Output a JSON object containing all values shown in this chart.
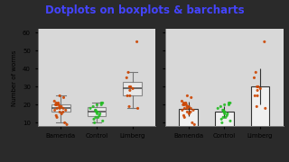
{
  "title": "Dotplots on boxplots & barcharts",
  "title_color": "#4444ff",
  "ylabel": "Number of worms",
  "ylim": [
    8,
    62
  ],
  "yticks": [
    10,
    20,
    30,
    40,
    50,
    60
  ],
  "groups": [
    "Bamenda",
    "Control",
    "Limberg"
  ],
  "bamenda_data": [
    25,
    24,
    22,
    21,
    21,
    20,
    20,
    20,
    19,
    19,
    18,
    18,
    18,
    17,
    17,
    16,
    16,
    15,
    14,
    13,
    10,
    9
  ],
  "control_data": [
    21,
    21,
    20,
    20,
    19,
    18,
    17,
    17,
    16,
    16,
    16,
    15,
    15,
    14,
    13,
    13,
    12,
    11,
    10
  ],
  "limberg_data": [
    55,
    38,
    35,
    30,
    30,
    29,
    28,
    25,
    25,
    19,
    18
  ],
  "dot_color_orange": "#cc4400",
  "dot_color_green": "#22bb22",
  "box_facecolor": "#e8e8e8",
  "box_edge_color": "#888888",
  "bar_color": "#f0f0f0",
  "bar_edge_color": "#333333",
  "figure_bg": "#2a2a2a",
  "axes_bg": "#d8d8d8",
  "figsize": [
    3.2,
    1.8
  ],
  "dpi": 100
}
